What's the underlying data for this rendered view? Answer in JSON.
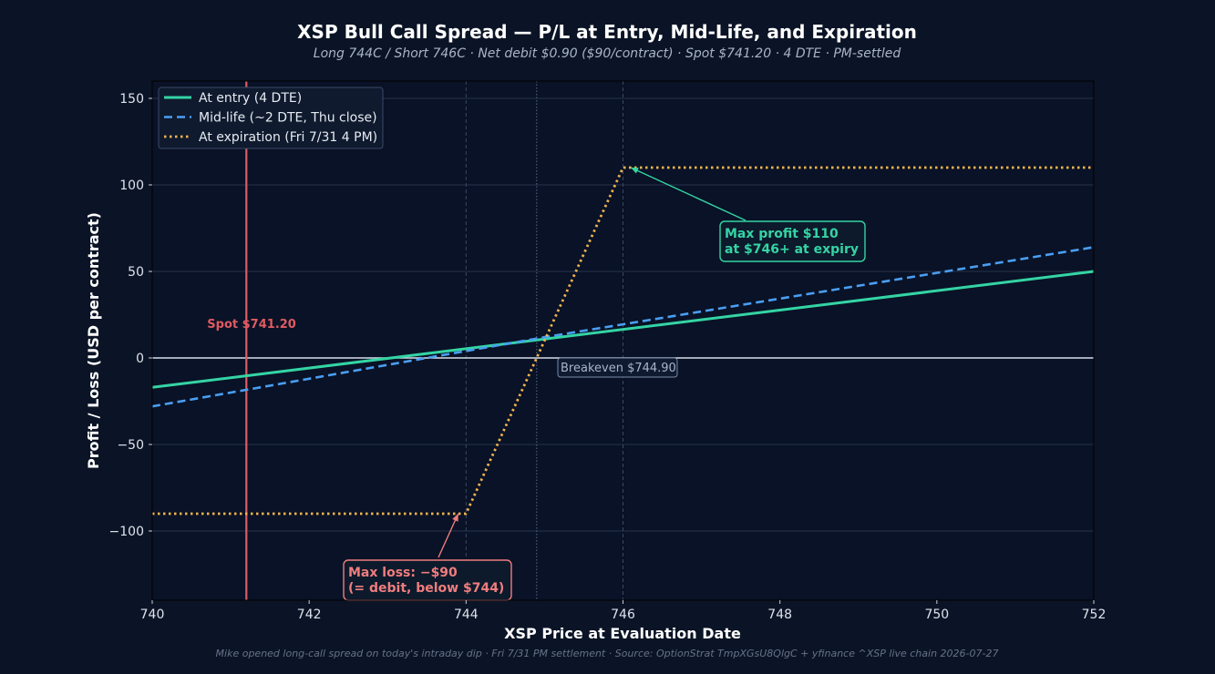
{
  "chart_data": {
    "type": "line",
    "title": "XSP Bull Call Spread — P/L at Entry, Mid-Life, and Expiration",
    "subtitle": "Long 744C / Short 746C · Net debit $0.90 ($90/contract) · Spot $741.20 · 4 DTE · PM-settled",
    "xlabel": "XSP Price at Evaluation Date",
    "ylabel": "Profit / Loss (USD per contract)",
    "footer": "Mike opened long-call spread on today's intraday dip · Fri 7/31 PM settlement · Source: OptionStrat TmpXGsU8QlgC + yfinance ^XSP live chain 2026-07-27",
    "xlim": [
      740,
      752
    ],
    "ylim": [
      -140,
      160
    ],
    "xticks": [
      740,
      742,
      744,
      746,
      748,
      750,
      752
    ],
    "yticks": [
      -100,
      -50,
      0,
      50,
      100,
      150
    ],
    "xtick_labels": [
      "740",
      "742",
      "744",
      "746",
      "748",
      "750",
      "752"
    ],
    "ytick_labels": [
      "−100",
      "−50",
      "0",
      "50",
      "100",
      "150"
    ],
    "grid": true,
    "legend_position": "top-left",
    "colors": {
      "background": "#0b1426",
      "plot_background": "#091226",
      "text": "#ffffff",
      "muted": "#a9b4c8",
      "grid": "#26324a",
      "entry": "#34d4a4",
      "midlife": "#4a9ef2",
      "expiry": "#f0b34e",
      "spot": "#e05a62",
      "max_profit": "#34d4a4",
      "max_loss": "#f07d7d"
    },
    "series": [
      {
        "name": "At entry (4 DTE)",
        "style": "solid",
        "x": [
          740,
          752
        ],
        "y": [
          -17,
          50
        ]
      },
      {
        "name": "Mid-life (~2 DTE, Thu close)",
        "style": "dashed",
        "x": [
          740,
          745,
          752
        ],
        "y": [
          -28,
          12,
          64
        ]
      },
      {
        "name": "At expiration (Fri 7/31 4 PM)",
        "style": "dotted",
        "x": [
          740,
          744,
          746,
          752
        ],
        "y": [
          -90,
          -90,
          110,
          110
        ]
      }
    ],
    "reference_lines": {
      "spot": {
        "x": 741.2,
        "label": "Spot $741.20"
      },
      "breakeven": {
        "x": 744.9,
        "label": "Breakeven $744.90"
      },
      "strikes": [
        744,
        746
      ],
      "zero": 0
    },
    "annotations": [
      {
        "id": "max-profit",
        "text_lines": [
          "Max profit $110",
          "at $746+ at expiry"
        ],
        "point": [
          746.1,
          110
        ],
        "anchor": [
          747.55,
          81
        ]
      },
      {
        "id": "max-loss",
        "text_lines": [
          "Max loss: −$90",
          "(= debit, below $744)"
        ],
        "point": [
          743.9,
          -90
        ],
        "anchor": [
          742.6,
          -112
        ]
      }
    ]
  }
}
